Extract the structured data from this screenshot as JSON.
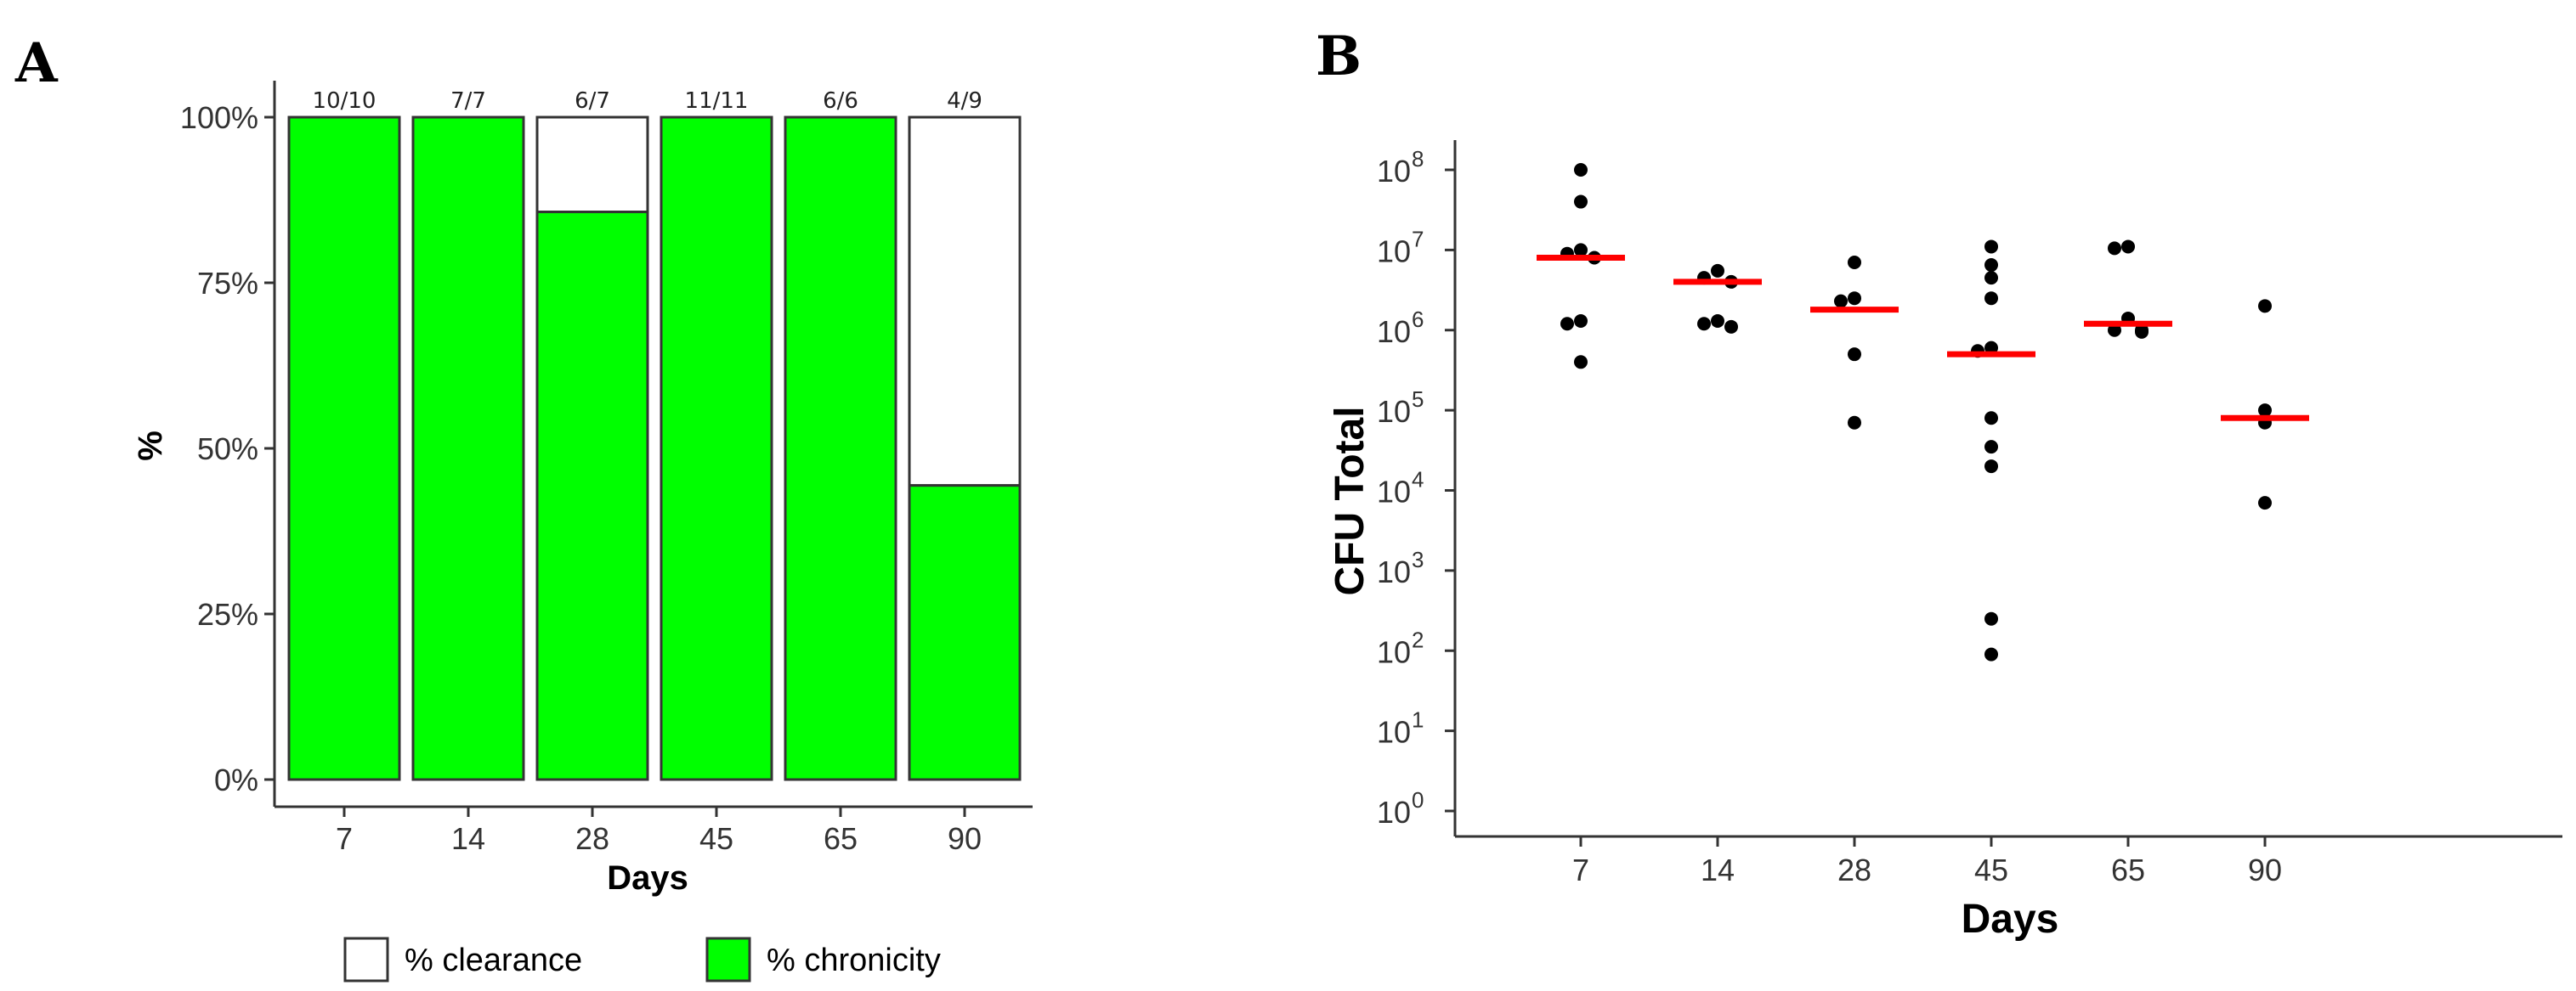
{
  "panels": {
    "a": "A",
    "b": "B"
  },
  "colors": {
    "chronicity": "#00ff00",
    "clearance": "#ffffff",
    "median": "#ff0000",
    "point": "#000000"
  },
  "chart_data": [
    {
      "type": "bar",
      "stacked": true,
      "panel": "A",
      "categories": [
        "7",
        "14",
        "28",
        "45",
        "65",
        "90"
      ],
      "series": [
        {
          "name": "% chronicity",
          "values": [
            100,
            100,
            85.7,
            100,
            100,
            44.4
          ]
        },
        {
          "name": "% clearance",
          "values": [
            0,
            0,
            14.3,
            0,
            0,
            55.6
          ]
        }
      ],
      "bar_labels": [
        "10/10",
        "7/7",
        "6/7",
        "11/11",
        "6/6",
        "4/9"
      ],
      "xlabel": "Days",
      "ylabel": "%",
      "ylim": [
        0,
        100
      ],
      "yticks": [
        0,
        25,
        50,
        75,
        100
      ],
      "ytick_labels": [
        "0%",
        "25%",
        "50%",
        "75%",
        "100%"
      ],
      "legend": [
        "% clearance",
        "% chronicity"
      ],
      "legend_position": "bottom"
    },
    {
      "type": "scatter",
      "panel": "B",
      "yscale": "log10",
      "categories": [
        "7",
        "14",
        "28",
        "45",
        "65",
        "90"
      ],
      "points": [
        [
          100000000,
          40000000,
          10000000,
          9000000,
          8000000,
          1300000,
          1200000,
          400000
        ],
        [
          5500000,
          4500000,
          4000000,
          1300000,
          1200000,
          1100000
        ],
        [
          7000000,
          2500000,
          2300000,
          500000,
          70000
        ],
        [
          11000000,
          6500000,
          4500000,
          2500000,
          600000,
          550000,
          80000,
          35000,
          20000,
          250,
          90
        ],
        [
          11000000,
          10500000,
          1400000,
          1000000,
          1000000,
          950000
        ],
        [
          2000000,
          100000,
          70000,
          7000
        ]
      ],
      "medians": [
        8000000,
        4000000,
        1800000,
        500000,
        1200000,
        80000
      ],
      "xlabel": "Days",
      "ylabel": "CFU Total",
      "ylim_exp": [
        0,
        8
      ],
      "ytick_labels": [
        "10",
        "10",
        "10",
        "10",
        "10",
        "10",
        "10",
        "10",
        "10"
      ],
      "ytick_exponents": [
        "0",
        "1",
        "2",
        "3",
        "4",
        "5",
        "6",
        "7",
        "8"
      ]
    }
  ]
}
